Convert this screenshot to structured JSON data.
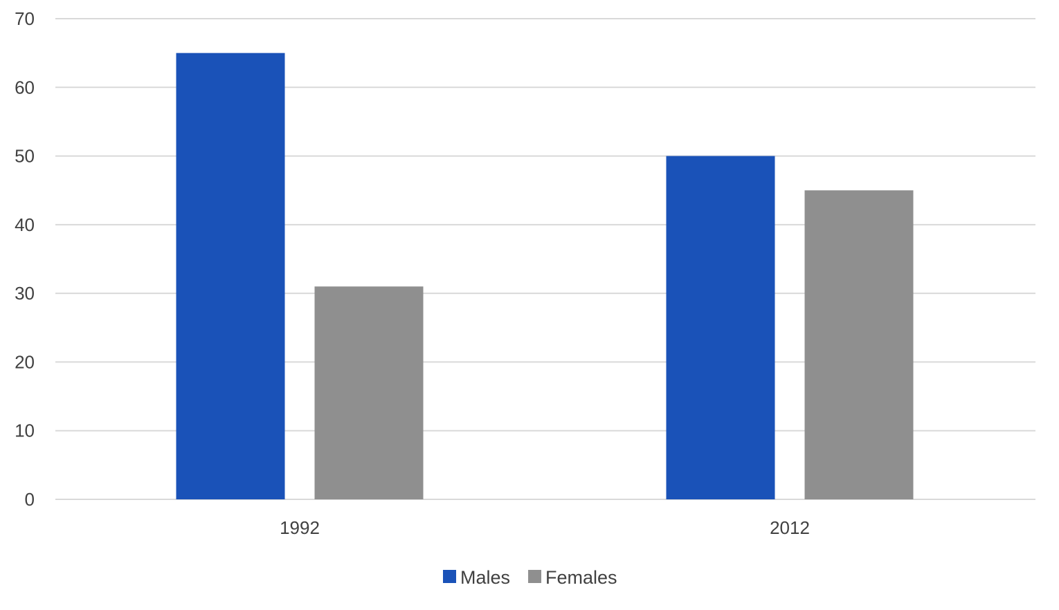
{
  "chart_data": {
    "type": "bar",
    "categories": [
      "1992",
      "2012"
    ],
    "series": [
      {
        "name": "Males",
        "values": [
          65,
          50
        ],
        "color": "#1a52b8"
      },
      {
        "name": "Females",
        "values": [
          31,
          45
        ],
        "color": "#8f8f8f"
      }
    ],
    "title": "",
    "xlabel": "",
    "ylabel": "",
    "ylim": [
      0,
      70
    ],
    "yticks": [
      0,
      10,
      20,
      30,
      40,
      50,
      60,
      70
    ],
    "grid": true,
    "legend_position": "bottom"
  }
}
